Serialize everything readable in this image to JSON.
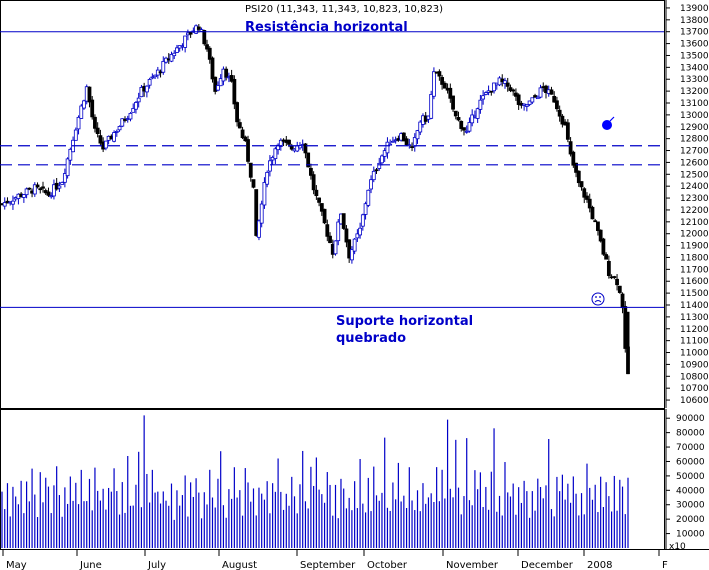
{
  "chart_data": {
    "type": "candlestick",
    "title": "PSI20 (11,343, 11,343, 10,823, 10,823)",
    "annotations": {
      "resistance": "Resistência horizontal",
      "support_line1": "Suporte horizontal",
      "support_line2": "quebrado"
    },
    "reference_lines": {
      "resistance": 13700,
      "support": 11380,
      "dashed_upper": 12740,
      "dashed_lower": 12580
    },
    "price_axis": {
      "ticks": [
        13900,
        13800,
        13700,
        13600,
        13500,
        13400,
        13300,
        13200,
        13100,
        13000,
        12900,
        12800,
        12700,
        12600,
        12500,
        12400,
        12300,
        12200,
        12100,
        12000,
        11900,
        11800,
        11700,
        11600,
        11500,
        11400,
        11300,
        11200,
        11100,
        11000,
        10900,
        10800,
        10700,
        10600
      ],
      "range": [
        10550,
        13950
      ]
    },
    "volume_axis": {
      "ticks": [
        90000,
        80000,
        70000,
        60000,
        50000,
        40000,
        30000,
        20000,
        10000
      ],
      "range": [
        0,
        95000
      ],
      "multiplier_label": "x10"
    },
    "x_axis": {
      "months": [
        "May",
        "June",
        "July",
        "August",
        "September",
        "October",
        "November",
        "December",
        "2008",
        "F"
      ]
    },
    "price_path": [
      [
        0,
        12250
      ],
      [
        6,
        12320
      ],
      [
        12,
        12380
      ],
      [
        17,
        12330
      ],
      [
        22,
        12450
      ],
      [
        27,
        12900
      ],
      [
        31,
        13230
      ],
      [
        34,
        12860
      ],
      [
        37,
        12720
      ],
      [
        41,
        12850
      ],
      [
        46,
        13000
      ],
      [
        51,
        13200
      ],
      [
        56,
        13330
      ],
      [
        61,
        13480
      ],
      [
        66,
        13610
      ],
      [
        70,
        13720
      ],
      [
        72,
        13750
      ],
      [
        75,
        13560
      ],
      [
        78,
        13200
      ],
      [
        81,
        13400
      ],
      [
        84,
        13250
      ],
      [
        86,
        12950
      ],
      [
        89,
        12750
      ],
      [
        92,
        12380
      ],
      [
        93,
        11950
      ],
      [
        97,
        12550
      ],
      [
        101,
        12780
      ],
      [
        106,
        12720
      ],
      [
        110,
        12780
      ],
      [
        114,
        12380
      ],
      [
        118,
        12080
      ],
      [
        121,
        11850
      ],
      [
        124,
        12180
      ],
      [
        127,
        11820
      ],
      [
        131,
        12030
      ],
      [
        134,
        12380
      ],
      [
        138,
        12620
      ],
      [
        142,
        12780
      ],
      [
        146,
        12830
      ],
      [
        150,
        12700
      ],
      [
        153,
        12950
      ],
      [
        156,
        12980
      ],
      [
        158,
        13350
      ],
      [
        162,
        13250
      ],
      [
        166,
        12980
      ],
      [
        170,
        12850
      ],
      [
        174,
        13080
      ],
      [
        178,
        13200
      ],
      [
        182,
        13280
      ],
      [
        186,
        13230
      ],
      [
        190,
        13050
      ],
      [
        194,
        13120
      ],
      [
        198,
        13230
      ],
      [
        202,
        13130
      ],
      [
        206,
        12900
      ],
      [
        208,
        12650
      ],
      [
        211,
        12420
      ],
      [
        214,
        12280
      ],
      [
        217,
        12080
      ],
      [
        219,
        11920
      ],
      [
        222,
        11680
      ],
      [
        225,
        11600
      ],
      [
        227,
        11400
      ],
      [
        228,
        11000
      ],
      [
        229,
        10823
      ]
    ],
    "volume_pattern": [
      40000,
      28000,
      45000,
      22000,
      50000,
      35000,
      31000,
      42000,
      27000,
      48000,
      33000,
      52000,
      38000,
      24000,
      46000,
      30000,
      55000,
      36000,
      29000,
      44000,
      70000,
      32000,
      26000,
      49000,
      37000,
      58000,
      34000,
      41000,
      28000,
      47000
    ]
  }
}
